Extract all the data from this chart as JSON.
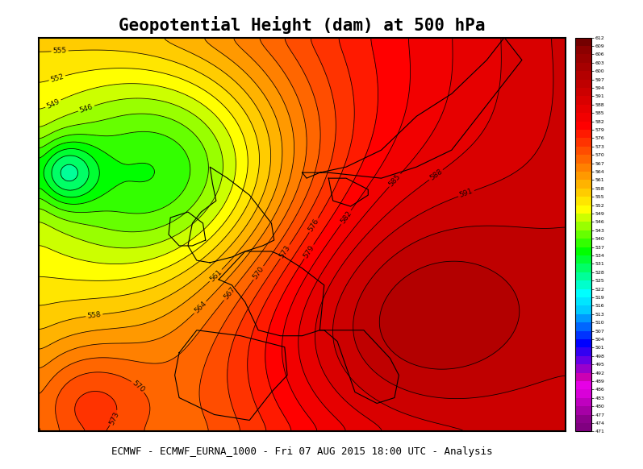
{
  "title": "Geopotential Height (dam) at 500 hPa",
  "footer": "ECMWF - ECMWF_EURNA_1000 - Fri 07 AUG 2015 18:00 UTC - Analysis",
  "lon_min": -25,
  "lon_max": 35,
  "lat_min": 35,
  "lat_max": 70,
  "contour_levels": [
    471,
    474,
    477,
    480,
    483,
    486,
    489,
    492,
    495,
    498,
    501,
    504,
    507,
    510,
    513,
    516,
    519,
    522,
    525,
    528,
    531,
    534,
    537,
    540,
    543,
    546,
    549,
    552,
    555,
    558,
    561,
    564,
    567,
    570,
    573,
    576,
    579,
    582,
    585,
    588,
    591,
    594,
    597,
    600
  ],
  "label_levels": [
    546,
    549,
    552,
    555,
    558,
    561,
    564,
    567,
    570,
    573,
    576,
    579,
    582,
    585,
    588,
    591
  ],
  "colorbar_min": 471,
  "colorbar_max": 612,
  "colorbar_step": 3,
  "background_color": "#ffffff",
  "map_background": "#f0f0e8"
}
